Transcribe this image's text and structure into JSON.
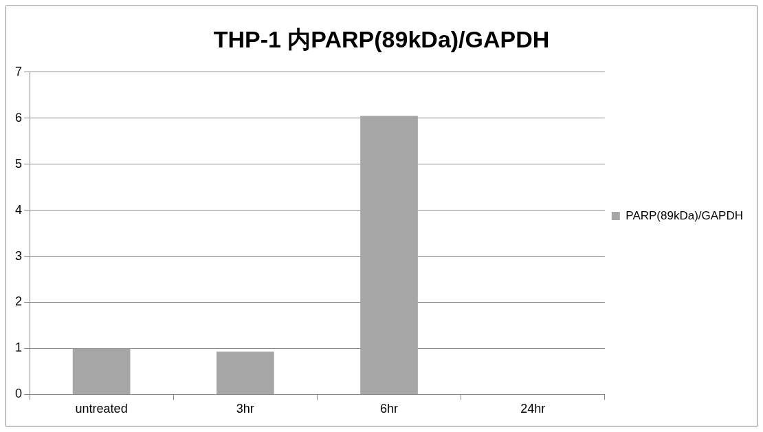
{
  "chart_data": {
    "type": "bar",
    "title": "THP-1 内PARP(89kDa)/GAPDH",
    "categories": [
      "untreated",
      "3hr",
      "6hr",
      "24hr"
    ],
    "series": [
      {
        "name": "PARP(89kDa)/GAPDH",
        "color": "#a6a6a6",
        "values": [
          1.0,
          0.93,
          6.05,
          0
        ]
      }
    ],
    "ylim": [
      0,
      7
    ],
    "yticks": [
      0,
      1,
      2,
      3,
      4,
      5,
      6,
      7
    ],
    "grid": "y",
    "legend": "right"
  }
}
